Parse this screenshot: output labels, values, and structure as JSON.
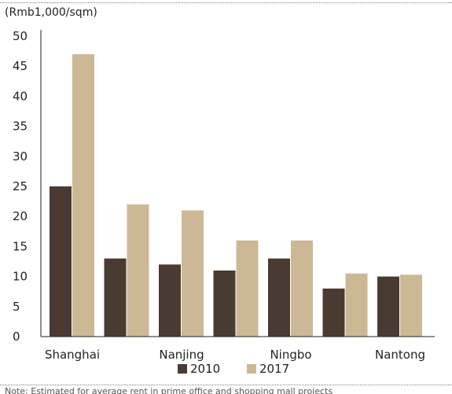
{
  "unit_label": "(Rmb1,000/sqm)",
  "footnote": "Note: Estimated for average rent in prime office and shopping mall projects",
  "chart_data": {
    "type": "bar",
    "categories": [
      "Shanghai",
      "",
      "Nanjing",
      "",
      "Ningbo",
      "",
      "Nantong"
    ],
    "series": [
      {
        "name": "2010",
        "color": "#4a3b32",
        "values": [
          25,
          13,
          12,
          11,
          13,
          8,
          10
        ]
      },
      {
        "name": "2017",
        "color": "#cdb896",
        "values": [
          47,
          22,
          21,
          16,
          16,
          10.5,
          10.3
        ]
      }
    ],
    "ylim": [
      0,
      50
    ],
    "yticks": [
      0,
      5,
      10,
      15,
      20,
      25,
      30,
      35,
      40,
      45,
      50
    ],
    "ylabel": "(Rmb1,000/sqm)",
    "xlabel": "",
    "title": "",
    "legend_position": "bottom-center",
    "grid": false
  }
}
